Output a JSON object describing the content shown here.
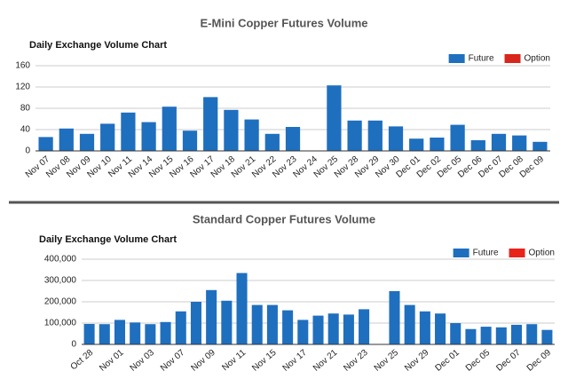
{
  "chart_data": [
    {
      "type": "bar",
      "title": "E-Mini Copper Futures Volume",
      "subtitle": "Daily Exchange Volume Chart",
      "categories": [
        "Nov 07",
        "Nov 08",
        "Nov 09",
        "Nov 10",
        "Nov 11",
        "Nov 14",
        "Nov 15",
        "Nov 16",
        "Nov 17",
        "Nov 18",
        "Nov 21",
        "Nov 22",
        "Nov 23",
        "Nov 24",
        "Nov 25",
        "Nov 28",
        "Nov 29",
        "Nov 30",
        "Dec 01",
        "Dec 02",
        "Dec 05",
        "Dec 06",
        "Dec 07",
        "Dec 08",
        "Dec 09"
      ],
      "series": [
        {
          "name": "Future",
          "color": "#1f6fbf",
          "values": [
            26,
            42,
            32,
            51,
            72,
            54,
            83,
            38,
            101,
            77,
            59,
            32,
            45,
            0,
            123,
            57,
            57,
            46,
            23,
            25,
            49,
            20,
            32,
            29,
            17
          ]
        },
        {
          "name": "Option",
          "color": "#d9261c",
          "values": [
            0,
            0,
            0,
            0,
            0,
            0,
            0,
            0,
            0,
            0,
            0,
            0,
            0,
            0,
            0,
            0,
            0,
            0,
            0,
            0,
            0,
            0,
            0,
            0,
            0
          ]
        }
      ],
      "ylim": [
        0,
        160
      ],
      "yticks": [
        0,
        40,
        80,
        120,
        160
      ],
      "grid": true,
      "stacked": true,
      "legend": "top-right"
    },
    {
      "type": "bar",
      "title": "Standard Copper Futures Volume",
      "subtitle": "Daily Exchange Volume Chart",
      "categories": [
        "Oct 28",
        null,
        "Nov 01",
        null,
        "Nov 03",
        null,
        "Nov 07",
        null,
        "Nov 09",
        null,
        "Nov 11",
        null,
        "Nov 15",
        null,
        "Nov 17",
        null,
        "Nov 21",
        null,
        "Nov 23",
        null,
        "Nov 25",
        null,
        "Nov 29",
        null,
        "Dec 01",
        null,
        "Dec 05",
        null,
        "Dec 07",
        null,
        "Dec 09"
      ],
      "series": [
        {
          "name": "Future",
          "color": "#1f6fbf",
          "values": [
            96000,
            95000,
            115000,
            103000,
            95000,
            105000,
            155000,
            200000,
            255000,
            205000,
            335000,
            185000,
            185000,
            160000,
            115000,
            135000,
            145000,
            140000,
            165000,
            0,
            250000,
            185000,
            155000,
            145000,
            100000,
            72000,
            83000,
            80000,
            92000,
            95000,
            68000
          ]
        },
        {
          "name": "Option",
          "color": "#e8231a",
          "values": [
            0,
            0,
            0,
            0,
            0,
            0,
            0,
            0,
            0,
            0,
            0,
            0,
            0,
            0,
            0,
            0,
            0,
            0,
            0,
            0,
            0,
            0,
            0,
            0,
            0,
            0,
            0,
            0,
            0,
            0,
            0
          ]
        }
      ],
      "ylim": [
        0,
        400000
      ],
      "yticks": [
        0,
        {
          "value": 100000,
          "label": "100,000"
        },
        {
          "value": 200000,
          "label": "200,000"
        },
        {
          "value": 300000,
          "label": "300,000"
        },
        {
          "value": 400000,
          "label": "400,000"
        }
      ],
      "grid": true,
      "stacked": true,
      "legend": "top-right"
    }
  ]
}
